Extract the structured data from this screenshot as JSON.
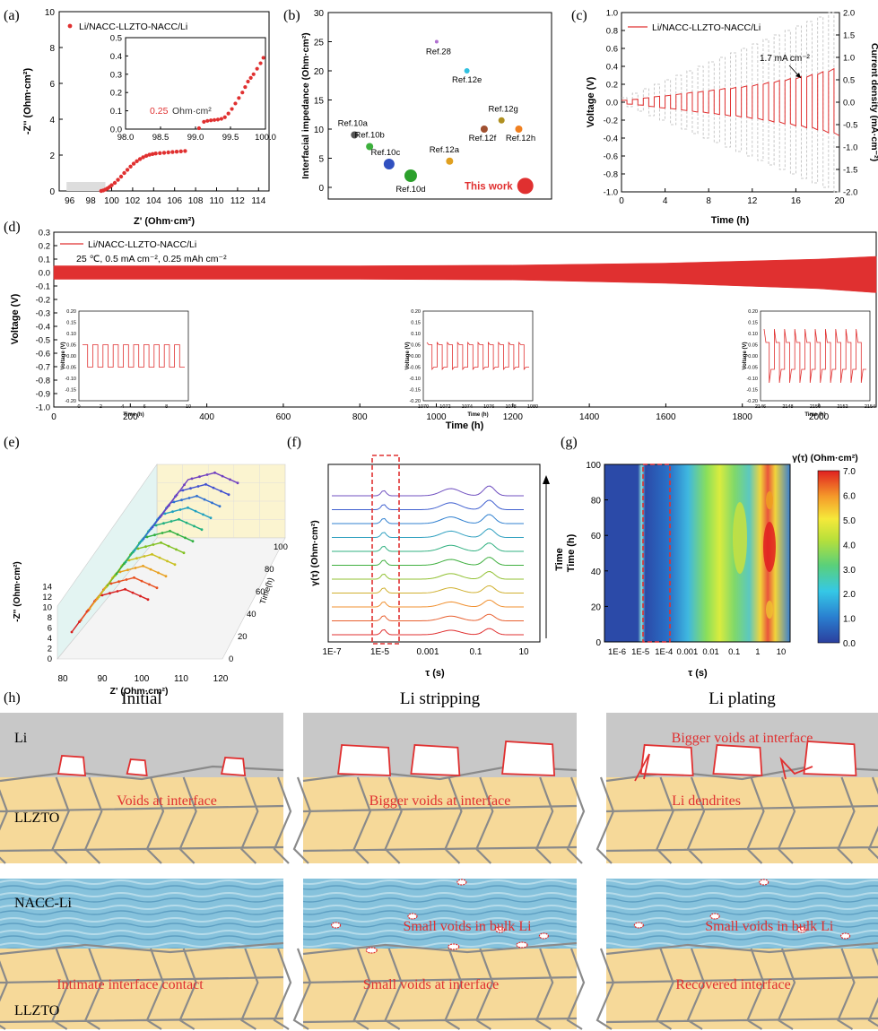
{
  "colors": {
    "red": "#e03030",
    "blue": "#2040a0",
    "gray": "#c8c8c8",
    "grain": "#f6d999",
    "gridline": "#888888",
    "void": "#ffffff",
    "bulk_blue": "#8ec6e0"
  },
  "panel_labels": {
    "a": "(a)",
    "b": "(b)",
    "c": "(c)",
    "d": "(d)",
    "e": "(e)",
    "f": "(f)",
    "g": "(g)",
    "h": "(h)"
  },
  "chart_data": [
    {
      "id": "a",
      "type": "scatter",
      "legend": "Li/NACC-LLZTO-NACC/Li",
      "xlabel": "Z' (Ohm·cm²)",
      "ylabel": "-Z'' (Ohm·cm²)",
      "xlim": [
        95,
        115
      ],
      "ylim": [
        0,
        10
      ],
      "xticks": [
        "96",
        "98",
        "100",
        "102",
        "104",
        "106",
        "108",
        "110",
        "112",
        "114"
      ],
      "yticks": [
        "0",
        "2",
        "4",
        "6",
        "8",
        "10"
      ],
      "points": [
        [
          99.0,
          0.0
        ],
        [
          99.2,
          0.03
        ],
        [
          99.4,
          0.08
        ],
        [
          99.6,
          0.14
        ],
        [
          99.8,
          0.22
        ],
        [
          100.0,
          0.32
        ],
        [
          100.3,
          0.45
        ],
        [
          100.6,
          0.62
        ],
        [
          100.9,
          0.8
        ],
        [
          101.2,
          1.0
        ],
        [
          101.5,
          1.18
        ],
        [
          101.8,
          1.36
        ],
        [
          102.1,
          1.52
        ],
        [
          102.4,
          1.66
        ],
        [
          102.7,
          1.78
        ],
        [
          103.0,
          1.88
        ],
        [
          103.3,
          1.96
        ],
        [
          103.6,
          2.02
        ],
        [
          103.9,
          2.06
        ],
        [
          104.2,
          2.09
        ],
        [
          104.6,
          2.11
        ],
        [
          105.0,
          2.13
        ],
        [
          105.4,
          2.15
        ],
        [
          105.8,
          2.17
        ],
        [
          106.2,
          2.19
        ],
        [
          106.6,
          2.21
        ],
        [
          107.0,
          2.23
        ]
      ],
      "inset": {
        "xlim": [
          98.0,
          100.0
        ],
        "ylim": [
          0,
          0.5
        ],
        "xticks": [
          "98.0",
          "98.5",
          "99.0",
          "99.5",
          "100.0"
        ],
        "yticks": [
          "0.0",
          "0.1",
          "0.2",
          "0.3",
          "0.4",
          "0.5"
        ],
        "annotation_value": "0.25",
        "annotation_unit": "Ohm·cm²",
        "points": [
          [
            99.05,
            0.005
          ],
          [
            99.12,
            0.04
          ],
          [
            99.17,
            0.045
          ],
          [
            99.22,
            0.048
          ],
          [
            99.27,
            0.05
          ],
          [
            99.32,
            0.052
          ],
          [
            99.37,
            0.056
          ],
          [
            99.42,
            0.065
          ],
          [
            99.47,
            0.085
          ],
          [
            99.52,
            0.11
          ],
          [
            99.57,
            0.14
          ],
          [
            99.62,
            0.17
          ],
          [
            99.67,
            0.2
          ],
          [
            99.71,
            0.23
          ],
          [
            99.75,
            0.26
          ],
          [
            99.79,
            0.28
          ],
          [
            99.83,
            0.3
          ],
          [
            99.88,
            0.33
          ],
          [
            99.93,
            0.36
          ],
          [
            99.97,
            0.39
          ]
        ]
      }
    },
    {
      "id": "b",
      "type": "scatter",
      "ylabel": "Interfacial impedance (Ohm·cm²)",
      "ylim": [
        -2,
        30
      ],
      "yticks": [
        "0",
        "5",
        "10",
        "15",
        "20",
        "25",
        "30"
      ],
      "points": [
        {
          "label": "Ref.10a",
          "x": 0.8,
          "y": 9,
          "color": "#555555",
          "size": 4
        },
        {
          "label": "Ref.10b",
          "x": 1.5,
          "y": 7,
          "color": "#3cb03c",
          "size": 4
        },
        {
          "label": "Ref.10c",
          "x": 2.4,
          "y": 4,
          "color": "#3050c0",
          "size": 6
        },
        {
          "label": "Ref.10d",
          "x": 3.4,
          "y": 2,
          "color": "#2ca02c",
          "size": 7
        },
        {
          "label": "Ref.28",
          "x": 4.6,
          "y": 25,
          "color": "#b070d0",
          "size": 2
        },
        {
          "label": "Ref.12a",
          "x": 5.2,
          "y": 4.5,
          "color": "#e0a020",
          "size": 4
        },
        {
          "label": "Ref.12e",
          "x": 6.0,
          "y": 20,
          "color": "#30c0e0",
          "size": 3
        },
        {
          "label": "Ref.12f",
          "x": 6.8,
          "y": 10,
          "color": "#a05030",
          "size": 4
        },
        {
          "label": "Ref.12g",
          "x": 7.6,
          "y": 11.5,
          "color": "#b09020",
          "size": 3.5
        },
        {
          "label": "Ref.12h",
          "x": 8.4,
          "y": 10,
          "color": "#f08020",
          "size": 4
        }
      ],
      "this_work": {
        "label": "This work",
        "x": 8.7,
        "y": 0.25,
        "color": "#e03030",
        "size": 9
      }
    },
    {
      "id": "c",
      "type": "line",
      "legend": "Li/NACC-LLZTO-NACC/Li",
      "xlabel": "Time (h)",
      "ylabel": "Voltage (V)",
      "y2label": "Current density (mA·cm⁻²)",
      "xlim": [
        0,
        20
      ],
      "ylim": [
        -1.0,
        1.0
      ],
      "y2lim": [
        -2.0,
        2.0
      ],
      "xticks": [
        "0",
        "4",
        "8",
        "12",
        "16",
        "20"
      ],
      "yticks": [
        "-1.0",
        "-0.8",
        "-0.6",
        "-0.4",
        "-0.2",
        "0.0",
        "0.2",
        "0.4",
        "0.6",
        "0.8",
        "1.0"
      ],
      "y2ticks": [
        "-2.0",
        "-1.5",
        "-1.0",
        "-0.5",
        "0.0",
        "0.5",
        "1.0",
        "1.5",
        "2.0"
      ],
      "annotation": "1.7 mA cm⁻²",
      "voltage_amplitudes": [
        0.02,
        0.03,
        0.045,
        0.06,
        0.07,
        0.085,
        0.1,
        0.11,
        0.125,
        0.14,
        0.15,
        0.165,
        0.18,
        0.2,
        0.22,
        0.24,
        0.26,
        0.28,
        0.31,
        0.34
      ],
      "current_amplitudes": [
        0.1,
        0.2,
        0.3,
        0.4,
        0.5,
        0.6,
        0.7,
        0.8,
        0.9,
        1.0,
        1.1,
        1.2,
        1.3,
        1.4,
        1.5,
        1.6,
        1.7,
        1.8,
        1.9,
        2.0
      ]
    },
    {
      "id": "d",
      "type": "line",
      "legend": "Li/NACC-LLZTO-NACC/Li",
      "condition": "25 ℃, 0.5 mA cm⁻², 0.25 mAh cm⁻²",
      "xlabel": "Time (h)",
      "ylabel": "Voltage (V)",
      "xlim": [
        0,
        2150
      ],
      "ylim": [
        -1.0,
        0.3
      ],
      "xticks": [
        "0",
        "200",
        "400",
        "600",
        "800",
        "1000",
        "1200",
        "1400",
        "1600",
        "1800",
        "2000"
      ],
      "yticks": [
        "-1.0",
        "-0.9",
        "-0.8",
        "-0.7",
        "-0.6",
        "-0.5",
        "-0.4",
        "-0.3",
        "-0.2",
        "-0.1",
        "0.0",
        "0.1",
        "0.2",
        "0.3"
      ],
      "envelope": {
        "t": [
          0,
          800,
          1200,
          1600,
          2000,
          2150
        ],
        "upper": [
          0.05,
          0.05,
          0.055,
          0.07,
          0.1,
          0.12
        ],
        "lower": [
          -0.05,
          -0.05,
          -0.055,
          -0.08,
          -0.12,
          -0.15
        ]
      },
      "insets": [
        {
          "ylabel": "Voltage (V)",
          "xlabel": "Time (h)",
          "xticks": [
            "0",
            "2",
            "4",
            "6",
            "8",
            "10"
          ],
          "yticks": [
            "-0.20",
            "-0.15",
            "-0.10",
            "-0.05",
            "0.00",
            "0.05",
            "0.10",
            "0.15",
            "0.20"
          ],
          "amp": 0.05,
          "spike": 0
        },
        {
          "ylabel": "Voltage (V)",
          "xlabel": "Time (h)",
          "xticks": [
            "1070",
            "1072",
            "1074",
            "1076",
            "1078",
            "1080"
          ],
          "yticks": [
            "-0.20",
            "-0.15",
            "-0.10",
            "-0.05",
            "0.00",
            "0.05",
            "0.10",
            "0.15",
            "0.20"
          ],
          "amp": 0.05,
          "spike": 0.01
        },
        {
          "ylabel": "Voltage (V)",
          "xlabel": "Time (h)",
          "xticks": [
            "2146",
            "2148",
            "2150",
            "2152",
            "2154"
          ],
          "yticks": [
            "-0.20",
            "-0.15",
            "-0.10",
            "-0.05",
            "0.00",
            "0.05",
            "0.10",
            "0.15",
            "0.20"
          ],
          "amp": 0.06,
          "spike": 0.06
        }
      ]
    },
    {
      "id": "e",
      "type": "scatter",
      "xlabel": "Z' (Ohm·cm²)",
      "ylabel": "-Z'' (Ohm·cm²)",
      "zlabel": "Time(h)",
      "xticks": [
        "80",
        "90",
        "100",
        "110",
        "120"
      ],
      "yticks": [
        "0",
        "2",
        "4",
        "6",
        "8",
        "10",
        "12",
        "14"
      ],
      "zticks": [
        "0",
        "20",
        "40",
        "60",
        "80",
        "100"
      ],
      "series_count": 11
    },
    {
      "id": "f",
      "type": "line",
      "xlabel": "τ (s)",
      "ylabel": "γ(τ) (Ohm·cm²)",
      "arrow_label": "Time",
      "xticks": [
        "1E-7",
        "1E-5",
        "0.001",
        "0.1",
        "10"
      ],
      "series_count": 11
    },
    {
      "id": "g",
      "type": "heatmap",
      "xlabel": "τ (s)",
      "ylabel": "Time (h)",
      "xticks": [
        "1E-6",
        "1E-5",
        "1E-4",
        "0.001",
        "0.01",
        "0.1",
        "1",
        "10"
      ],
      "yticks": [
        "0",
        "20",
        "40",
        "60",
        "80",
        "100"
      ],
      "colorbar_label": "γ(τ) (Ohm·cm²)",
      "colorbar_ticks": [
        "0.0",
        "1.0",
        "2.0",
        "3.0",
        "4.0",
        "5.0",
        "6.0",
        "7.0"
      ]
    }
  ],
  "schematic": {
    "columns": [
      "Initial",
      "Li stripping",
      "Li plating"
    ],
    "top_row_labels": {
      "li": "Li",
      "llzto": "LLZTO"
    },
    "bottom_row_labels": {
      "nacc": "NACC-Li",
      "llzto": "LLZTO"
    },
    "top_notes": [
      "Voids at interface",
      "Bigger voids at interface",
      "Bigger voids at interface"
    ],
    "top_extra": "Li dendrites",
    "bottom_notes": [
      "Intimate interface contact",
      "Small voids at interface",
      "Recovered interface"
    ],
    "bulk_notes": [
      "",
      "Small voids in bulk Li",
      "Small voids in bulk Li"
    ]
  }
}
